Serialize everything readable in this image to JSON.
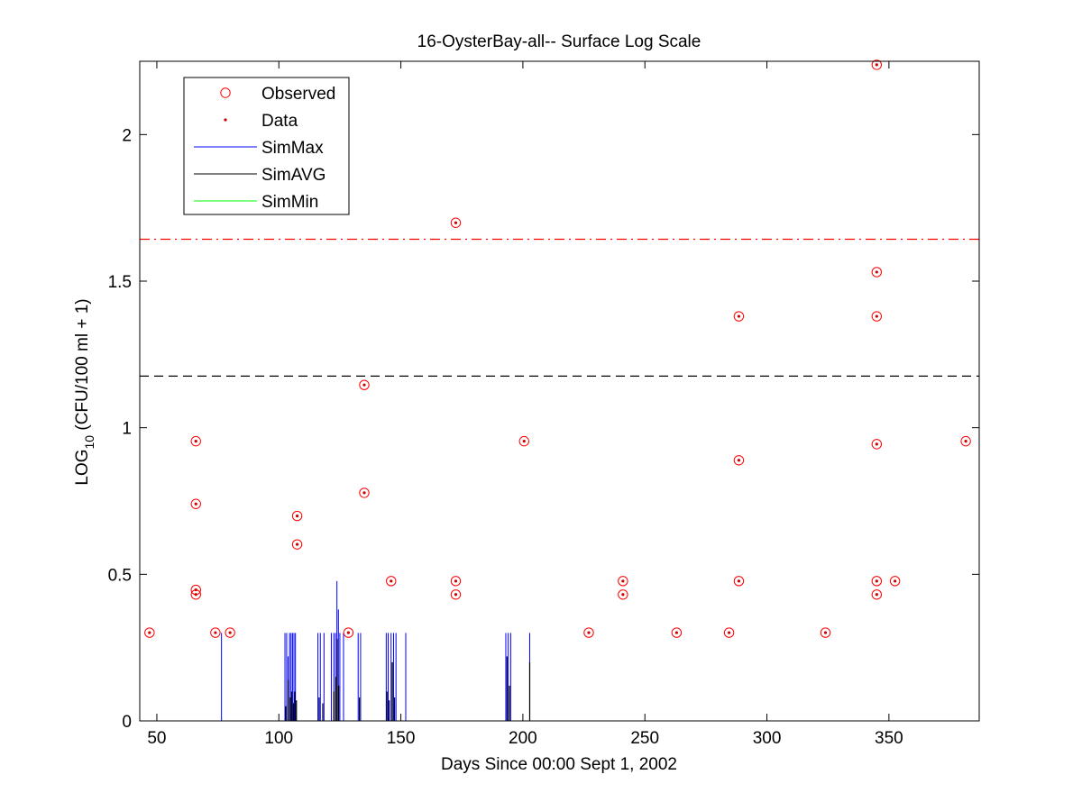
{
  "chart_data": {
    "type": "scatter",
    "title": "16-OysterBay-all-- Surface Log Scale",
    "xlabel": "Days Since 00:00 Sept 1, 2002",
    "ylabel": {
      "main": "LOG",
      "sub": "10",
      "rest": " (CFU/100 ml + 1)"
    },
    "xlim": [
      43,
      387
    ],
    "ylim": [
      0,
      2.25
    ],
    "xticks": [
      50,
      100,
      150,
      200,
      250,
      300,
      350
    ],
    "xtick_labels": [
      "50",
      "100",
      "150",
      "200",
      "250",
      "300",
      "350"
    ],
    "yticks": [
      0,
      0.5,
      1,
      1.5,
      2
    ],
    "ytick_labels": [
      "0",
      "0.5",
      "1",
      "1.5",
      "2"
    ],
    "legend": {
      "placement": "top-left",
      "entries": [
        {
          "label": "Observed",
          "marker": "circle",
          "color": "#ff0000"
        },
        {
          "label": "Data",
          "marker": "dot",
          "color": "#ff0000"
        },
        {
          "label": "SimMax",
          "marker": "line",
          "color": "#0000ff"
        },
        {
          "label": "SimAVG",
          "marker": "line",
          "color": "#000000"
        },
        {
          "label": "SimMin",
          "marker": "line",
          "color": "#00ff00"
        }
      ]
    },
    "reference_lines": [
      {
        "y": 1.643,
        "style": "dash-dot",
        "color": "#ff0000"
      },
      {
        "y": 1.176,
        "style": "dashed",
        "color": "#000000"
      }
    ],
    "observed": [
      [
        47,
        0.301
      ],
      [
        66,
        0.954
      ],
      [
        66,
        0.74
      ],
      [
        66,
        0.447
      ],
      [
        66,
        0.431
      ],
      [
        74,
        0.301
      ],
      [
        80,
        0.301
      ],
      [
        107.5,
        0.699
      ],
      [
        107.5,
        0.602
      ],
      [
        128.5,
        0.301
      ],
      [
        135,
        1.146
      ],
      [
        135,
        0.778
      ],
      [
        146,
        0.477
      ],
      [
        172.5,
        1.699
      ],
      [
        172.5,
        0.477
      ],
      [
        172.5,
        0.431
      ],
      [
        200.5,
        0.954
      ],
      [
        227,
        0.301
      ],
      [
        241,
        0.477
      ],
      [
        241,
        0.431
      ],
      [
        263,
        0.301
      ],
      [
        284.5,
        0.301
      ],
      [
        288.5,
        1.38
      ],
      [
        288.5,
        0.889
      ],
      [
        288.5,
        0.477
      ],
      [
        324,
        0.301
      ],
      [
        345,
        2.238
      ],
      [
        345,
        1.531
      ],
      [
        345,
        1.38
      ],
      [
        345,
        0.944
      ],
      [
        345,
        0.477
      ],
      [
        345,
        0.431
      ],
      [
        352.5,
        0.477
      ],
      [
        381.5,
        0.954
      ]
    ],
    "sim_max": [
      [
        76.5,
        0.3
      ],
      [
        102.5,
        0.3
      ],
      [
        103.2,
        0.3
      ],
      [
        103.8,
        0.22
      ],
      [
        104.4,
        0.3
      ],
      [
        105.0,
        0.3
      ],
      [
        105.6,
        0.3
      ],
      [
        106.2,
        0.3
      ],
      [
        106.8,
        0.3
      ],
      [
        116.0,
        0.3
      ],
      [
        117.0,
        0.3
      ],
      [
        118.5,
        0.3
      ],
      [
        121.5,
        0.3
      ],
      [
        122.5,
        0.3
      ],
      [
        123.2,
        0.3
      ],
      [
        123.8,
        0.477
      ],
      [
        124.4,
        0.38
      ],
      [
        125.0,
        0.3
      ],
      [
        126.5,
        0.3
      ],
      [
        132.5,
        0.3
      ],
      [
        133.5,
        0.3
      ],
      [
        144.0,
        0.3
      ],
      [
        144.8,
        0.3
      ],
      [
        146.0,
        0.3
      ],
      [
        147.0,
        0.3
      ],
      [
        148.0,
        0.3
      ],
      [
        152.0,
        0.3
      ],
      [
        193.0,
        0.3
      ],
      [
        194.0,
        0.3
      ],
      [
        195.0,
        0.3
      ],
      [
        202.8,
        0.3
      ]
    ],
    "sim_avg": [
      [
        102.8,
        0.05
      ],
      [
        103.8,
        0.14
      ],
      [
        104.6,
        0.08
      ],
      [
        105.3,
        0.1
      ],
      [
        106.0,
        0.06
      ],
      [
        106.6,
        0.1
      ],
      [
        107.2,
        0.07
      ],
      [
        116.5,
        0.08
      ],
      [
        118.0,
        0.06
      ],
      [
        122.5,
        0.1
      ],
      [
        123.3,
        0.15
      ],
      [
        123.9,
        0.28
      ],
      [
        124.5,
        0.12
      ],
      [
        133.0,
        0.08
      ],
      [
        144.3,
        0.1
      ],
      [
        145.2,
        0.07
      ],
      [
        146.5,
        0.2
      ],
      [
        147.4,
        0.08
      ],
      [
        193.5,
        0.22
      ],
      [
        194.5,
        0.12
      ],
      [
        202.8,
        0.2
      ]
    ]
  }
}
